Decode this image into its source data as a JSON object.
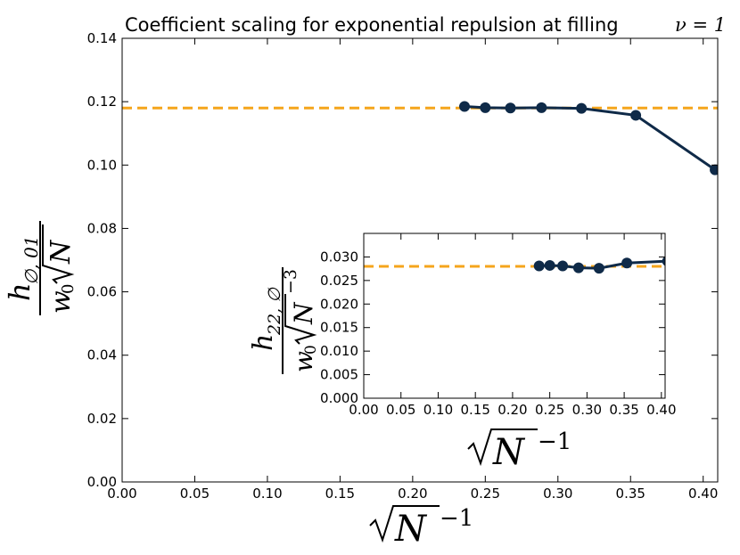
{
  "chart_data": [
    {
      "type": "line",
      "title": "Coefficient scaling for exponential repulsion at filling",
      "title_math": "ν = 1",
      "xlabel": "√N^-1",
      "ylabel": "h_{∅,01} / (w0 √N)",
      "xlim": [
        0.0,
        0.41
      ],
      "ylim": [
        0.0,
        0.14
      ],
      "xticks": [
        "0.00",
        "0.05",
        "0.10",
        "0.15",
        "0.20",
        "0.25",
        "0.30",
        "0.35",
        "0.40"
      ],
      "yticks": [
        "0.00",
        "0.02",
        "0.04",
        "0.06",
        "0.08",
        "0.10",
        "0.12",
        "0.14"
      ],
      "reference_line": {
        "y": 0.118,
        "color": "#f5a51c",
        "style": "dashed"
      },
      "series": [
        {
          "name": "data",
          "color": "#0f2a48",
          "x": [
            0.2357,
            0.25,
            0.2673,
            0.2887,
            0.3162,
            0.3536,
            0.4082
          ],
          "y": [
            0.1185,
            0.1181,
            0.118,
            0.1181,
            0.1179,
            0.1157,
            0.0985
          ]
        }
      ]
    },
    {
      "type": "line",
      "title": "",
      "xlabel": "√N^-1",
      "ylabel": "h_{22,∅} / (w0 √N^-3)",
      "xlim": [
        0.0,
        0.405
      ],
      "ylim": [
        0.0,
        0.035
      ],
      "xticks": [
        "0.00",
        "0.05",
        "0.10",
        "0.15",
        "0.20",
        "0.25",
        "0.30",
        "0.35",
        "0.40"
      ],
      "yticks": [
        "0.000",
        "0.005",
        "0.010",
        "0.015",
        "0.020",
        "0.025",
        "0.030"
      ],
      "reference_line": {
        "y": 0.028,
        "color": "#f5a51c",
        "style": "dashed"
      },
      "series": [
        {
          "name": "data",
          "color": "#0f2a48",
          "x": [
            0.2357,
            0.25,
            0.2673,
            0.2887,
            0.3162,
            0.3536,
            0.4082
          ],
          "y": [
            0.0281,
            0.0282,
            0.0281,
            0.0277,
            0.0276,
            0.0287,
            0.0291
          ]
        }
      ]
    }
  ]
}
